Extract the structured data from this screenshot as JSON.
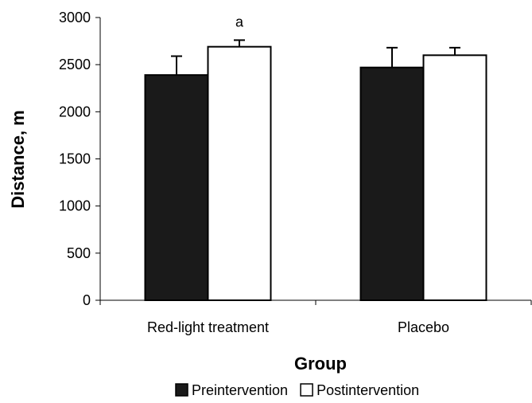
{
  "chart_data": {
    "type": "bar",
    "title": "",
    "xlabel": "Group",
    "ylabel": "Distance, m",
    "categories": [
      "Red-light treatment",
      "Placebo"
    ],
    "ylim": [
      0,
      3000
    ],
    "yticks": [
      0,
      500,
      1000,
      1500,
      2000,
      2500,
      3000
    ],
    "grid": false,
    "legend_position": "bottom",
    "series": [
      {
        "name": "Preintervention",
        "values": [
          2390,
          2470
        ],
        "errors": [
          200,
          210
        ],
        "color": "#1a1a1a"
      },
      {
        "name": "Postintervention",
        "values": [
          2690,
          2600
        ],
        "errors": [
          70,
          80
        ],
        "color": "#ffffff"
      }
    ],
    "annotations": [
      {
        "text": "a",
        "category": "Red-light treatment",
        "series": "Postintervention"
      }
    ]
  }
}
